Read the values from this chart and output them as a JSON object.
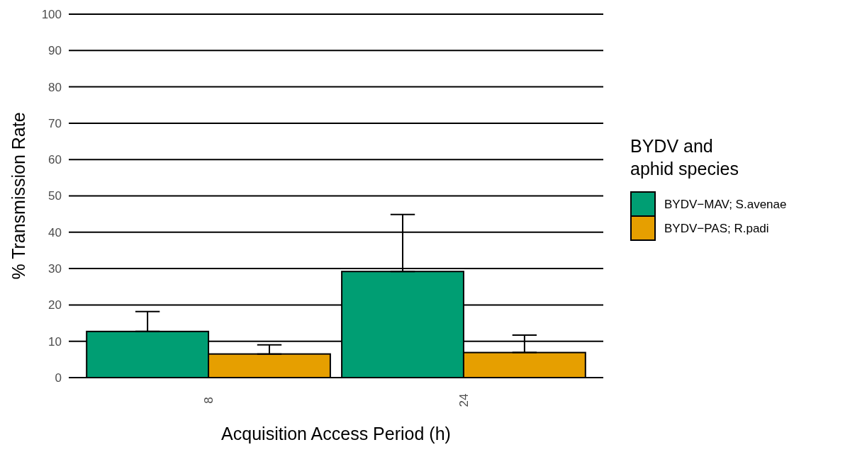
{
  "chart_data": {
    "type": "bar",
    "xlabel": "Acquisition Access Period (h)",
    "ylabel": "% Transmission Rate",
    "legend_title": "BYDV and\naphid species",
    "categories": [
      "8",
      "24"
    ],
    "series": [
      {
        "name": "BYDV−MAV; S.avenae",
        "color": "#009e73",
        "values": [
          12.7,
          29.2
        ],
        "errors": [
          [
            12.7,
            18.2
          ],
          [
            29.2,
            44.9
          ]
        ]
      },
      {
        "name": "BYDV−PAS; R.padi",
        "color": "#e69f00",
        "values": [
          6.5,
          6.9
        ],
        "errors": [
          [
            6.5,
            9.0
          ],
          [
            6.9,
            11.7
          ]
        ]
      }
    ],
    "ylim": [
      0,
      100
    ],
    "yticks": [
      0,
      10,
      20,
      30,
      40,
      50,
      60,
      70,
      80,
      90,
      100
    ],
    "grid": "y",
    "legend": "right"
  }
}
